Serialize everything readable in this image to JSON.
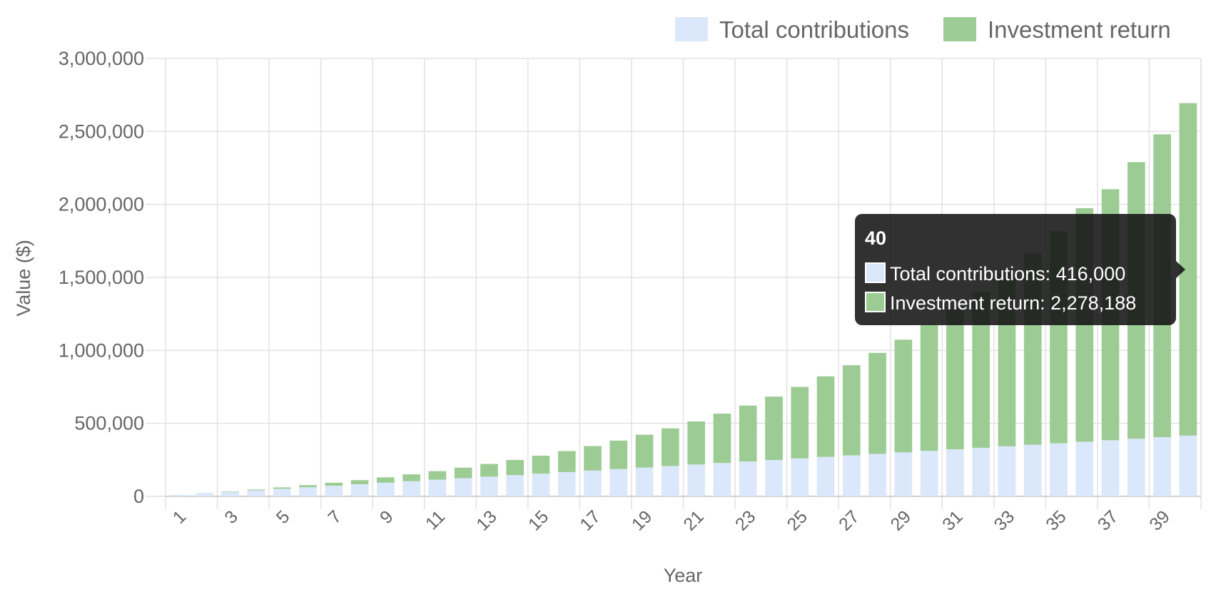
{
  "chart_data": {
    "type": "bar",
    "stacked": true,
    "title": "",
    "xlabel": "Year",
    "ylabel": "Value ($)",
    "ylim": [
      0,
      3000000
    ],
    "y_ticks": [
      "0",
      "500,000",
      "1,000,000",
      "1,500,000",
      "2,000,000",
      "2,500,000",
      "3,000,000"
    ],
    "categories": [
      1,
      2,
      3,
      4,
      5,
      6,
      7,
      8,
      9,
      10,
      11,
      12,
      13,
      14,
      15,
      16,
      17,
      18,
      19,
      20,
      21,
      22,
      23,
      24,
      25,
      26,
      27,
      28,
      29,
      30,
      31,
      32,
      33,
      34,
      35,
      36,
      37,
      38,
      39,
      40
    ],
    "x_tick_labels": [
      "1",
      "3",
      "5",
      "7",
      "9",
      "11",
      "13",
      "15",
      "17",
      "19",
      "21",
      "23",
      "25",
      "27",
      "29",
      "31",
      "33",
      "35",
      "37",
      "39"
    ],
    "grid": true,
    "legend_position": "top-right",
    "series": [
      {
        "name": "Total contributions",
        "color": "#dbe8fb",
        "values": [
          10000,
          20400,
          30800,
          41200,
          51600,
          62000,
          72400,
          82800,
          93200,
          103600,
          114000,
          124400,
          134800,
          145200,
          155600,
          166000,
          176400,
          186800,
          197200,
          207600,
          218000,
          228400,
          238800,
          249200,
          259600,
          270000,
          280400,
          290800,
          301200,
          311600,
          322000,
          332400,
          342800,
          353200,
          363600,
          374000,
          384400,
          394800,
          405200,
          416000
        ]
      },
      {
        "name": "Investment return",
        "color": "#9ccc94",
        "values": [
          0,
          1200,
          3000,
          5800,
          9600,
          14500,
          20600,
          28000,
          36600,
          47000,
          58500,
          72000,
          87000,
          104000,
          122500,
          144000,
          168000,
          195000,
          225000,
          258000,
          295000,
          338000,
          383000,
          434000,
          490000,
          552000,
          618000,
          692000,
          772000,
          862000,
          960000,
          1068000,
          1187000,
          1316000,
          1455000,
          1600000,
          1720000,
          1895000,
          2075000,
          2278188
        ]
      }
    ],
    "tooltip": {
      "title": "40",
      "lines": [
        "Total contributions: 416,000",
        "Investment return: 2,278,188"
      ]
    }
  }
}
